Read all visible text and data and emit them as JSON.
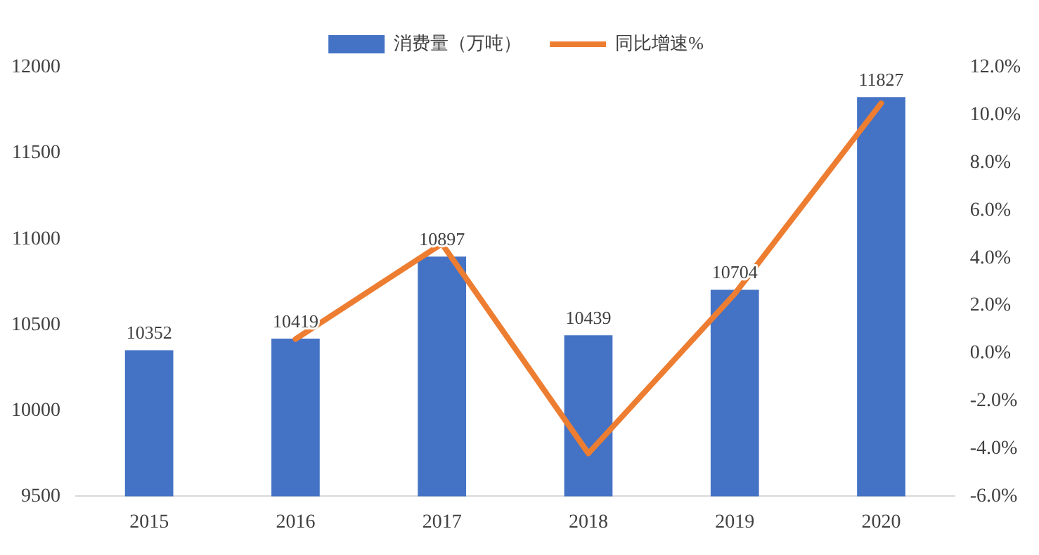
{
  "chart_data": {
    "type": "bar",
    "categories": [
      "2015",
      "2016",
      "2017",
      "2018",
      "2019",
      "2020"
    ],
    "series": [
      {
        "name": "消费量（万吨）",
        "color": "#4472c4",
        "values": [
          10352,
          10419,
          10897,
          10439,
          10704,
          11827
        ],
        "value_labels": [
          "10352",
          "10419",
          "10897",
          "10439",
          "10704",
          "11827"
        ]
      },
      {
        "name": "同比增速%",
        "type": "line",
        "axis": "y2",
        "color": "#ed7d31",
        "marker": "none",
        "values": [
          null,
          0.6,
          4.6,
          -4.2,
          2.5,
          10.5
        ]
      }
    ],
    "ylim": [
      9500,
      12000
    ],
    "yticks": [
      9500,
      10000,
      10500,
      11000,
      11500,
      12000
    ],
    "y2lim": [
      -6,
      12
    ],
    "y2ticks": [
      {
        "value": -6,
        "label": "-6.0%"
      },
      {
        "value": -4,
        "label": "-4.0%"
      },
      {
        "value": -2,
        "label": "-2.0%"
      },
      {
        "value": 0,
        "label": "0.0%"
      },
      {
        "value": 2,
        "label": "2.0%"
      },
      {
        "value": 4,
        "label": "4.0%"
      },
      {
        "value": 6,
        "label": "6.0%"
      },
      {
        "value": 8,
        "label": "8.0%"
      },
      {
        "value": 10,
        "label": "10.0%"
      },
      {
        "value": 12,
        "label": "12.0%"
      }
    ],
    "grid": false,
    "legend": "top"
  }
}
